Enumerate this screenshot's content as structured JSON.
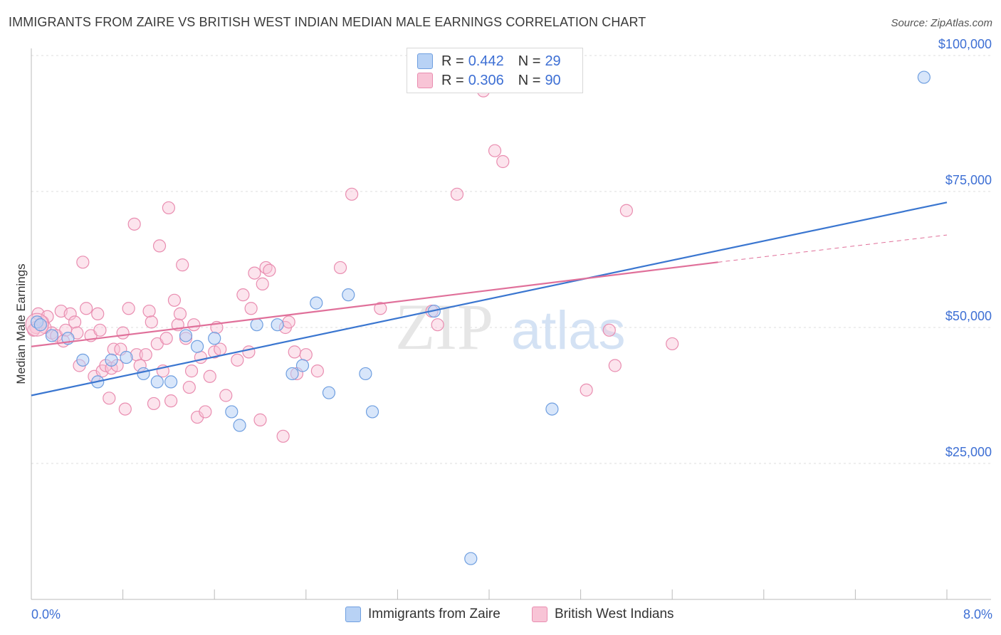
{
  "title": "IMMIGRANTS FROM ZAIRE VS BRITISH WEST INDIAN MEDIAN MALE EARNINGS CORRELATION CHART",
  "source": "Source: ZipAtlas.com",
  "watermark": {
    "zip": "ZIP",
    "atlas": "atlas"
  },
  "legend": {
    "r_label": "R =",
    "n_label": "N =",
    "series": [
      {
        "name": "Immigrants from Zaire",
        "r": "0.442",
        "n": "29",
        "fill": "#b8d2f5",
        "stroke": "#6f9fe0",
        "line": "#3a76d0"
      },
      {
        "name": "British West Indians",
        "r": "0.306",
        "n": "90",
        "fill": "#f8c4d6",
        "stroke": "#e98db0",
        "line": "#e0709a"
      }
    ]
  },
  "chart_data": {
    "type": "scatter",
    "title": "IMMIGRANTS FROM ZAIRE VS BRITISH WEST INDIAN MEDIAN MALE EARNINGS CORRELATION CHART",
    "xlabel": "",
    "ylabel": "Median Male Earnings",
    "xlim": [
      0,
      8
    ],
    "ylim": [
      0,
      100000
    ],
    "x_tick_labels": [
      "0.0%",
      "8.0%"
    ],
    "y_ticks": [
      25000,
      50000,
      75000,
      100000
    ],
    "y_tick_labels": [
      "$25,000",
      "$50,000",
      "$75,000",
      "$100,000"
    ],
    "grid": true,
    "series": [
      {
        "name": "Immigrants from Zaire",
        "trend": {
          "x": [
            0.0,
            8.0
          ],
          "y": [
            37500,
            73000
          ]
        },
        "points": [
          [
            0.05,
            51000
          ],
          [
            0.08,
            50500
          ],
          [
            0.18,
            48500
          ],
          [
            0.32,
            48000
          ],
          [
            0.45,
            44000
          ],
          [
            0.58,
            40000
          ],
          [
            0.7,
            44000
          ],
          [
            0.83,
            44500
          ],
          [
            0.98,
            41500
          ],
          [
            1.1,
            40000
          ],
          [
            1.22,
            40000
          ],
          [
            1.35,
            48500
          ],
          [
            1.45,
            46500
          ],
          [
            1.6,
            48000
          ],
          [
            1.75,
            34500
          ],
          [
            1.82,
            32000
          ],
          [
            1.97,
            50500
          ],
          [
            2.15,
            50500
          ],
          [
            2.28,
            41500
          ],
          [
            2.37,
            43000
          ],
          [
            2.49,
            54500
          ],
          [
            2.6,
            38000
          ],
          [
            2.77,
            56000
          ],
          [
            2.92,
            41500
          ],
          [
            2.98,
            34500
          ],
          [
            3.52,
            53000
          ],
          [
            3.84,
            7500
          ],
          [
            4.55,
            35000
          ],
          [
            7.8,
            96000
          ]
        ]
      },
      {
        "name": "British West Indians",
        "trend": {
          "x": [
            0.0,
            6.0
          ],
          "y": [
            46500,
            62000
          ]
        },
        "trend_dashed": {
          "x": [
            6.0,
            8.0
          ],
          "y": [
            62000,
            67000
          ]
        },
        "points": [
          [
            0.04,
            50000
          ],
          [
            0.06,
            52500
          ],
          [
            0.1,
            51000
          ],
          [
            0.14,
            52000
          ],
          [
            0.18,
            49000
          ],
          [
            0.22,
            48500
          ],
          [
            0.26,
            53000
          ],
          [
            0.3,
            49500
          ],
          [
            0.34,
            52500
          ],
          [
            0.38,
            51000
          ],
          [
            0.4,
            49000
          ],
          [
            0.42,
            43000
          ],
          [
            0.45,
            62000
          ],
          [
            0.48,
            53500
          ],
          [
            0.52,
            48500
          ],
          [
            0.55,
            41000
          ],
          [
            0.58,
            52500
          ],
          [
            0.6,
            49500
          ],
          [
            0.62,
            42000
          ],
          [
            0.65,
            43000
          ],
          [
            0.68,
            37000
          ],
          [
            0.7,
            42500
          ],
          [
            0.72,
            46000
          ],
          [
            0.75,
            43000
          ],
          [
            0.78,
            46000
          ],
          [
            0.8,
            49000
          ],
          [
            0.82,
            35000
          ],
          [
            0.85,
            53500
          ],
          [
            0.9,
            69000
          ],
          [
            0.92,
            45000
          ],
          [
            0.95,
            43000
          ],
          [
            1.0,
            45000
          ],
          [
            1.03,
            53000
          ],
          [
            1.05,
            51000
          ],
          [
            1.07,
            36000
          ],
          [
            1.1,
            47000
          ],
          [
            1.12,
            65000
          ],
          [
            1.15,
            42000
          ],
          [
            1.18,
            48000
          ],
          [
            1.2,
            72000
          ],
          [
            1.22,
            36500
          ],
          [
            1.25,
            55000
          ],
          [
            1.28,
            50500
          ],
          [
            1.3,
            52500
          ],
          [
            1.32,
            61500
          ],
          [
            1.35,
            48000
          ],
          [
            1.38,
            39000
          ],
          [
            1.4,
            42000
          ],
          [
            1.42,
            50500
          ],
          [
            1.45,
            33500
          ],
          [
            1.48,
            44500
          ],
          [
            1.52,
            34500
          ],
          [
            1.56,
            41000
          ],
          [
            1.6,
            45500
          ],
          [
            1.62,
            50000
          ],
          [
            1.65,
            46000
          ],
          [
            1.7,
            37500
          ],
          [
            1.8,
            44000
          ],
          [
            1.85,
            56000
          ],
          [
            1.9,
            45500
          ],
          [
            1.92,
            53500
          ],
          [
            1.95,
            60000
          ],
          [
            2.0,
            33000
          ],
          [
            2.02,
            58000
          ],
          [
            2.05,
            61000
          ],
          [
            2.08,
            60500
          ],
          [
            2.2,
            30000
          ],
          [
            2.22,
            50000
          ],
          [
            2.25,
            51000
          ],
          [
            2.3,
            45500
          ],
          [
            2.32,
            41500
          ],
          [
            2.4,
            45000
          ],
          [
            2.5,
            42000
          ],
          [
            2.7,
            61000
          ],
          [
            2.8,
            74500
          ],
          [
            3.05,
            53500
          ],
          [
            3.5,
            53000
          ],
          [
            3.55,
            50500
          ],
          [
            3.72,
            74500
          ],
          [
            3.95,
            93500
          ],
          [
            4.05,
            82500
          ],
          [
            4.12,
            80500
          ],
          [
            4.85,
            38500
          ],
          [
            5.05,
            49500
          ],
          [
            5.1,
            43000
          ],
          [
            5.2,
            71500
          ],
          [
            5.6,
            47000
          ],
          [
            0.02,
            49500
          ],
          [
            0.12,
            50000
          ],
          [
            0.28,
            47500
          ]
        ]
      }
    ]
  }
}
